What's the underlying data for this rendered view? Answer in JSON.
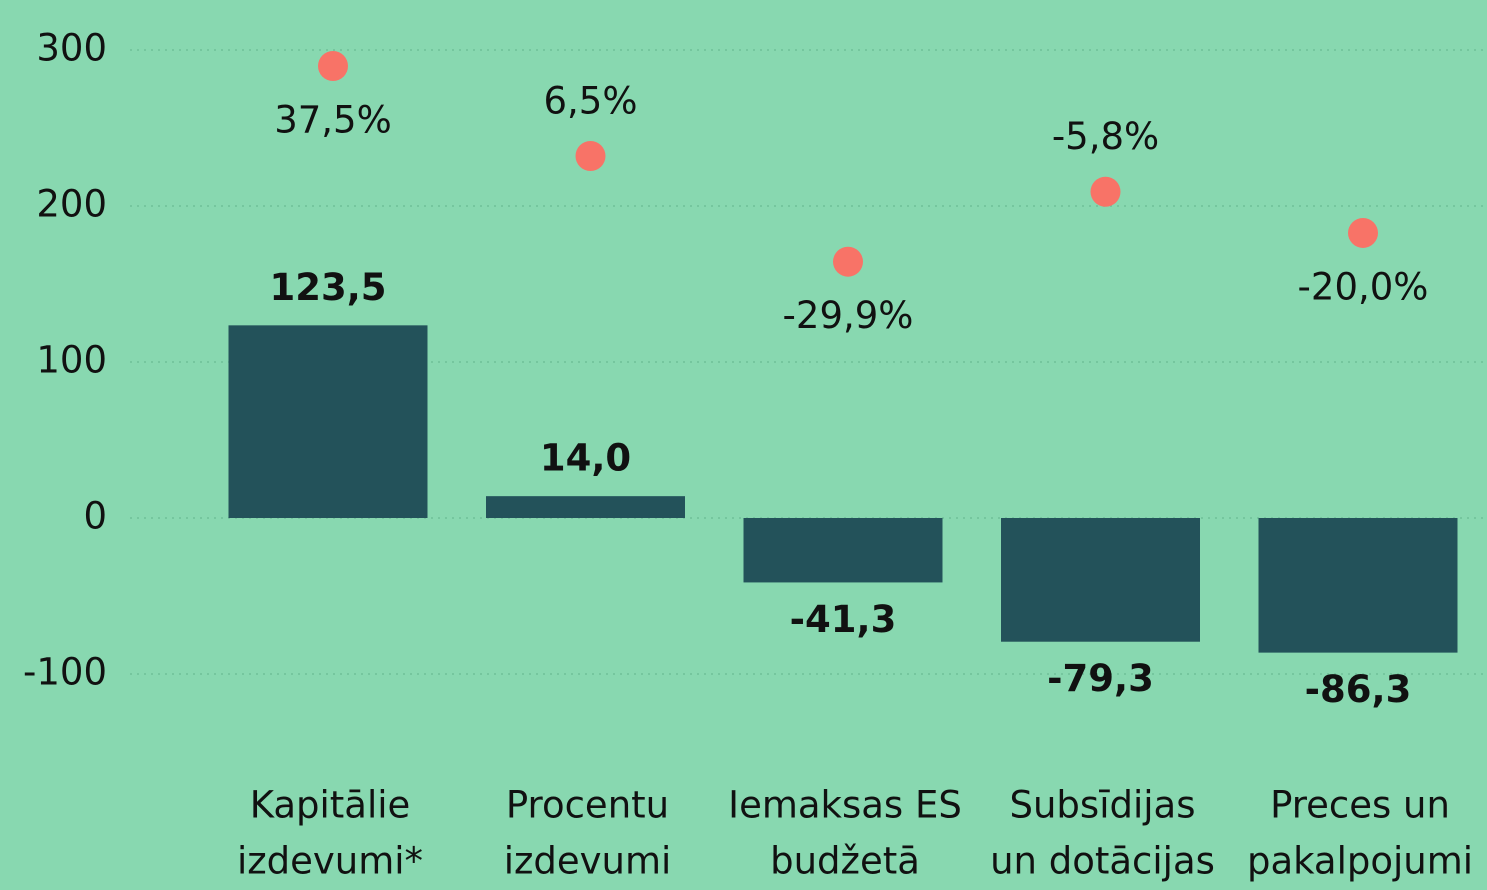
{
  "chart_data": {
    "type": "combo",
    "categories": [
      [
        "Kapitālie",
        "izdevumi*"
      ],
      [
        "Procentu",
        "izdevumi"
      ],
      [
        "Iemaksas ES",
        "budžetā"
      ],
      [
        "Subsīdijas",
        "un dotācijas"
      ],
      [
        "Preces un",
        "pakalpojumi"
      ]
    ],
    "series": [
      {
        "type": "bar",
        "color": "#23525a",
        "values": [
          123.5,
          14.0,
          -41.3,
          -79.3,
          -86.3
        ],
        "value_labels": [
          "123,5",
          "14,0",
          "-41,3",
          "-79,3",
          "-86,3"
        ]
      },
      {
        "type": "scatter",
        "axis": "y2",
        "color": "#f87367",
        "values": [
          37.5,
          6.5,
          -29.9,
          -5.8,
          -20.0
        ],
        "value_labels": [
          "37,5%",
          "6,5%",
          "-29,9%",
          "-5,8%",
          "-20,0%"
        ]
      }
    ],
    "ylim": [
      -130,
      300
    ],
    "yticks": [
      -100,
      0,
      100,
      200,
      300
    ],
    "y2lim": [
      -188,
      43
    ],
    "grid": true
  }
}
